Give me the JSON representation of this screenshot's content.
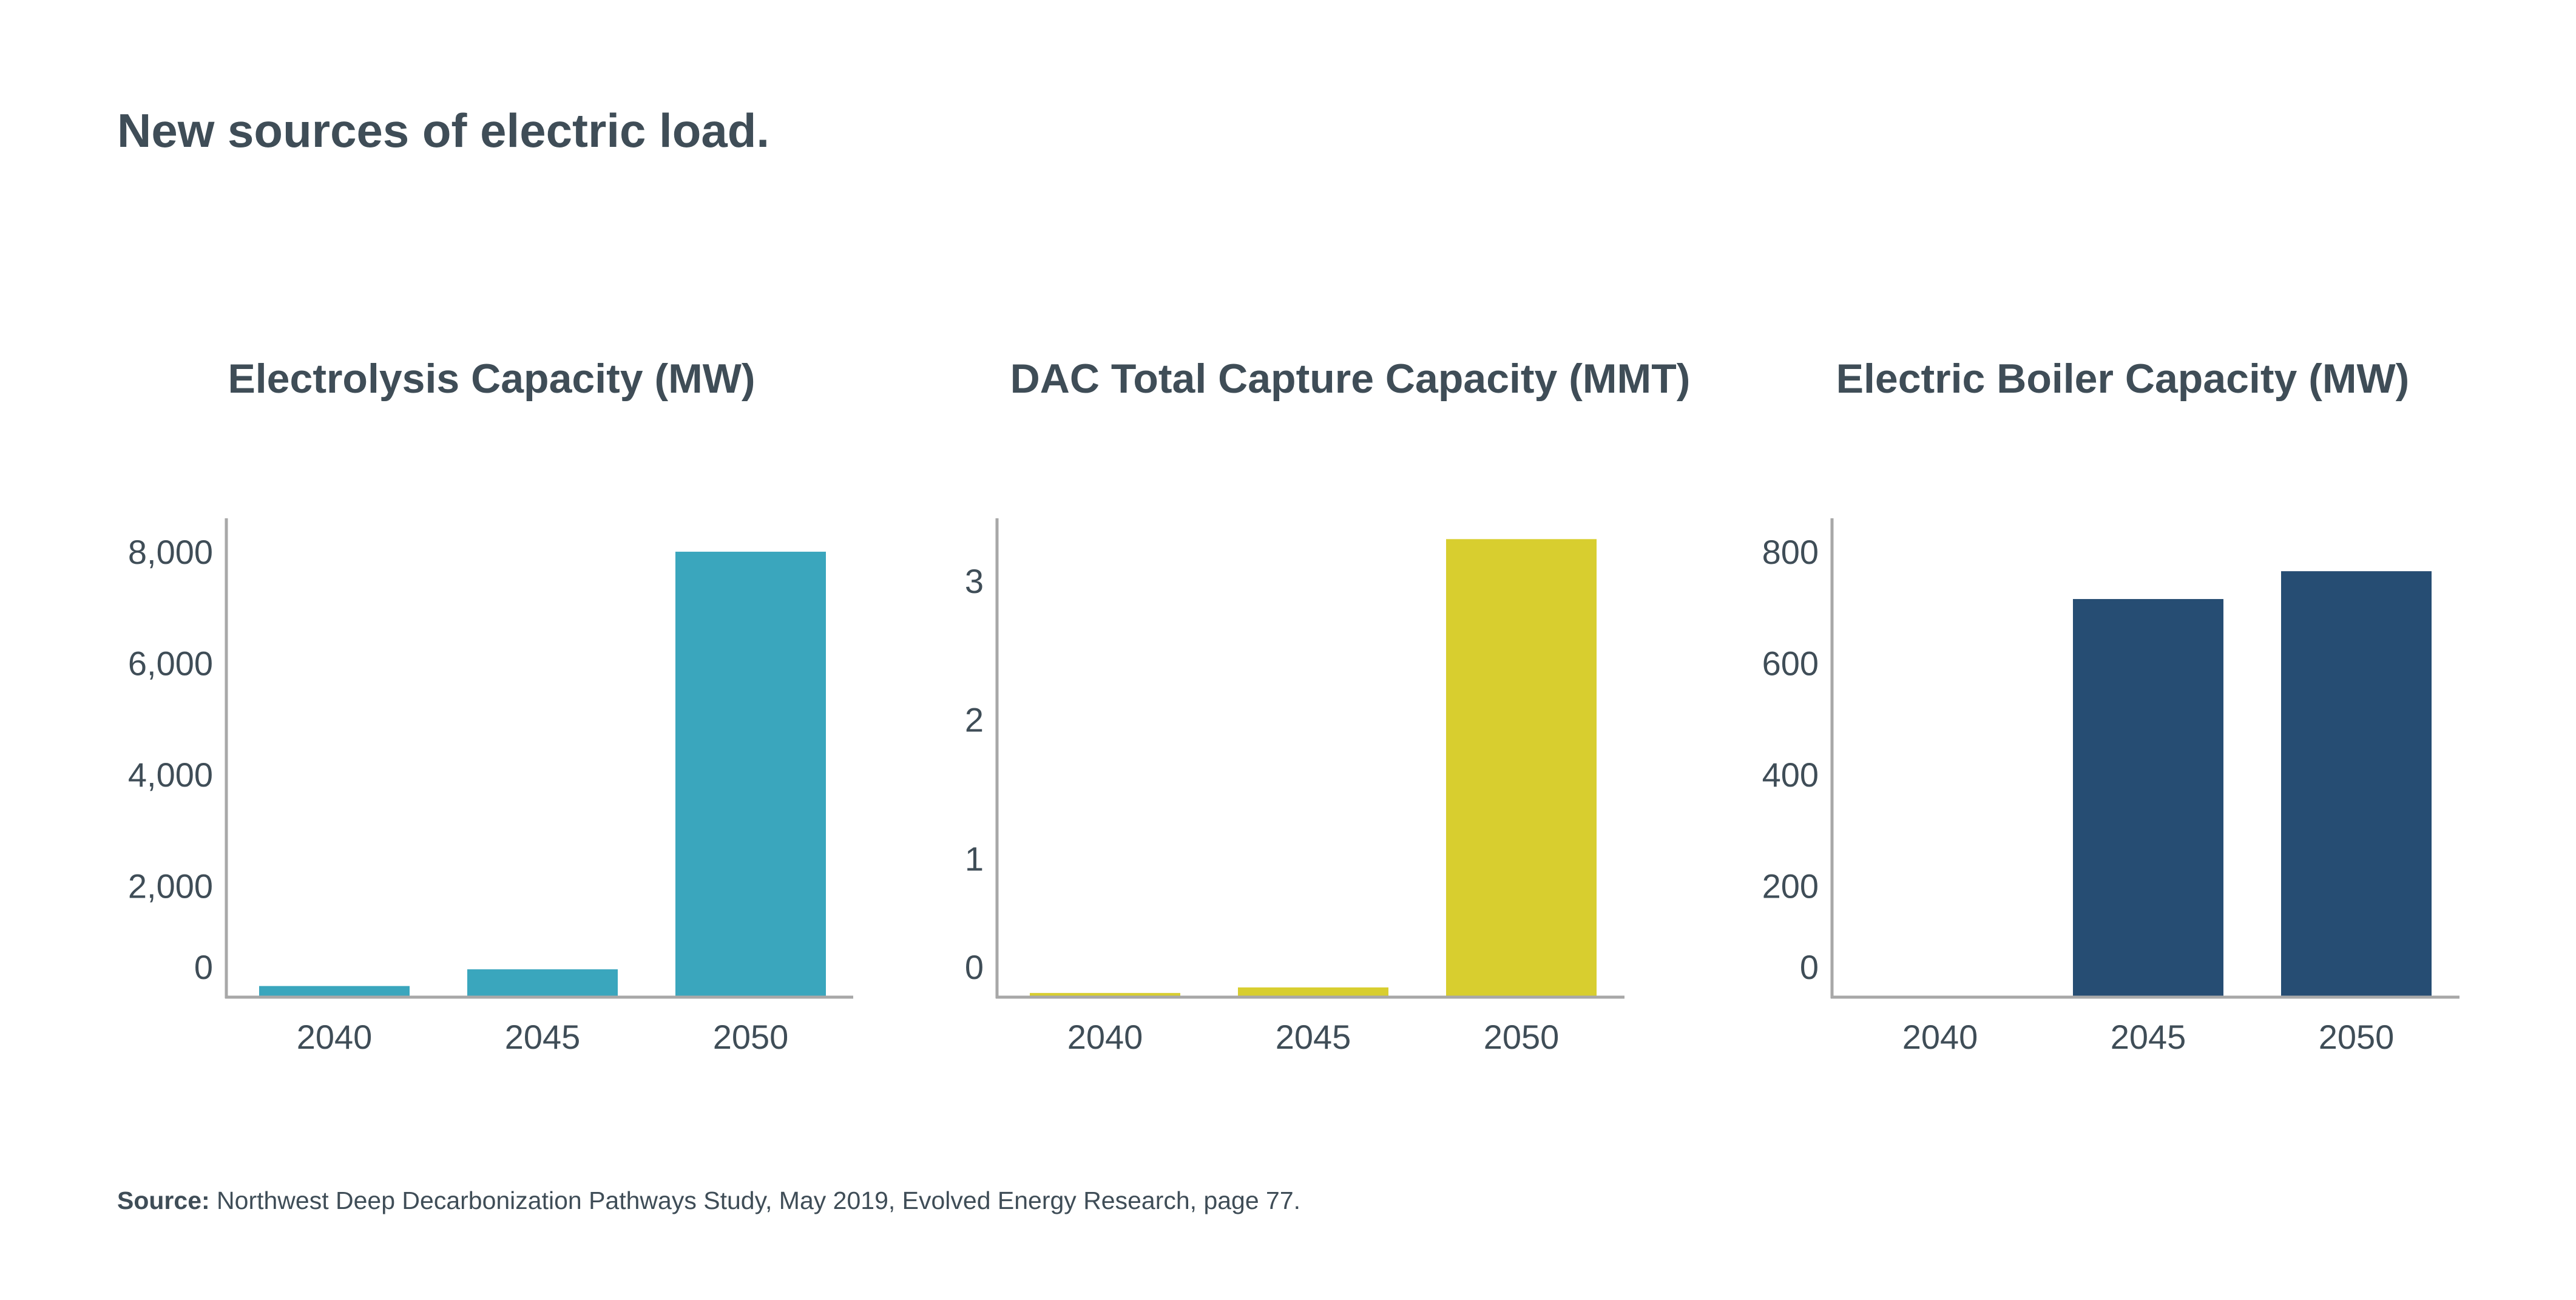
{
  "page": {
    "title": "New sources of electric load.",
    "source_label": "Source:",
    "source_text": " Northwest Deep Decarbonization Pathways Study, May 2019, Evolved Energy Research, page 77."
  },
  "colors": {
    "text": "#3f4d57",
    "axis": "#a8a8a8",
    "electrolysis": "#3aa6bd",
    "dac": "#d8ce2f",
    "boiler": "#264d73"
  },
  "chart_data": [
    {
      "type": "bar",
      "title": "Electrolysis Capacity (MW)",
      "categories": [
        "2040",
        "2045",
        "2050"
      ],
      "values": [
        200,
        500,
        8000
      ],
      "color": "#3aa6bd",
      "xlabel": "",
      "ylabel": "",
      "yticks": [
        0,
        2000,
        4000,
        6000,
        8000
      ],
      "ytick_labels": [
        "0",
        "2,000",
        "4,000",
        "6,000",
        "8,000"
      ],
      "ylim": [
        0,
        8600
      ],
      "grid": false,
      "legend": "none"
    },
    {
      "type": "bar",
      "title": "DAC Total Capture Capacity (MMT)",
      "categories": [
        "2040",
        "2045",
        "2050"
      ],
      "values": [
        0.03,
        0.07,
        3.3
      ],
      "color": "#d8ce2f",
      "xlabel": "",
      "ylabel": "",
      "yticks": [
        0,
        1,
        2,
        3
      ],
      "ytick_labels": [
        "0",
        "1",
        "2",
        "3"
      ],
      "ylim": [
        0,
        3.45
      ],
      "grid": false,
      "legend": "none"
    },
    {
      "type": "bar",
      "title": "Electric Boiler Capacity (MW)",
      "categories": [
        "2040",
        "2045",
        "2050"
      ],
      "values": [
        0,
        715,
        765
      ],
      "color": "#264d73",
      "xlabel": "",
      "ylabel": "",
      "yticks": [
        0,
        200,
        400,
        600,
        800
      ],
      "ytick_labels": [
        "0",
        "200",
        "400",
        "600",
        "800"
      ],
      "ylim": [
        0,
        860
      ],
      "grid": false,
      "legend": "none"
    }
  ]
}
